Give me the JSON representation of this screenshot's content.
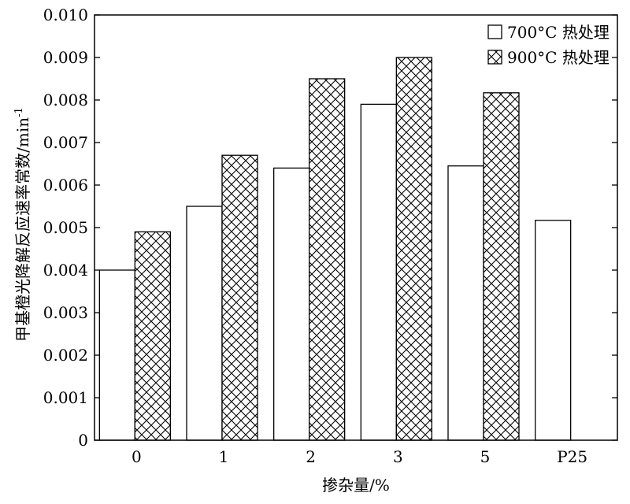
{
  "chart_data": {
    "type": "bar",
    "xlabel": "掺杂量/%",
    "ylabel": "甲基橙光降解反应速率常数/min",
    "ylabel_superscript": "-1",
    "categories": [
      "0",
      "1",
      "2",
      "3",
      "5",
      "P25"
    ],
    "ylim": [
      0,
      0.01
    ],
    "yticks": [
      "0",
      "0.001",
      "0.002",
      "0.003",
      "0.004",
      "0.005",
      "0.006",
      "0.007",
      "0.008",
      "0.009",
      "0.010"
    ],
    "grid": false,
    "legend_position": "top-right",
    "series": [
      {
        "name": "700°C 热处理",
        "fill": "plain",
        "values": [
          0.004,
          0.0055,
          0.0064,
          0.0079,
          0.00645,
          0.00517
        ]
      },
      {
        "name": "900°C 热处理",
        "fill": "crosshatch",
        "values": [
          0.0049,
          0.0067,
          0.0085,
          0.009,
          0.00817,
          null
        ]
      }
    ]
  }
}
